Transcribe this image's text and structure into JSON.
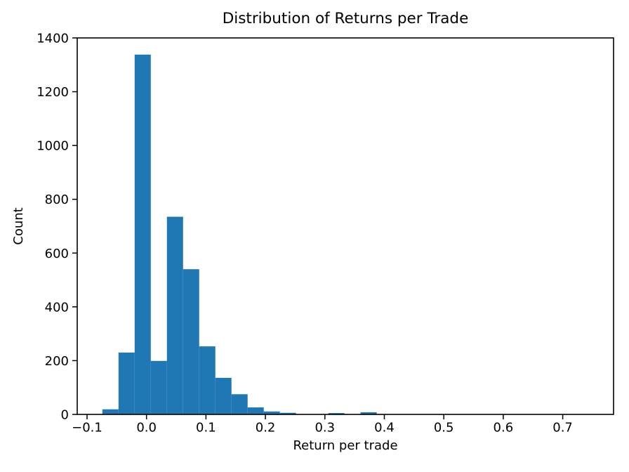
{
  "chart_data": {
    "type": "bar",
    "subtype": "histogram",
    "title": "Distribution of Returns per Trade",
    "xlabel": "Return per trade",
    "ylabel": "Count",
    "bar_color": "#1f77b4",
    "axis_color": "#000000",
    "background_color": "#ffffff",
    "grid": false,
    "legend": false,
    "xlim": [
      -0.1165,
      0.7855
    ],
    "ylim": [
      0,
      1400
    ],
    "xticks": [
      -0.1,
      0.0,
      0.1,
      0.2,
      0.3,
      0.4,
      0.5,
      0.6,
      0.7
    ],
    "xtick_labels": [
      "−0.1",
      "0.0",
      "0.1",
      "0.2",
      "0.3",
      "0.4",
      "0.5",
      "0.6",
      "0.7"
    ],
    "yticks": [
      0,
      200,
      400,
      600,
      800,
      1000,
      1200,
      1400
    ],
    "ytick_labels": [
      "0",
      "200",
      "400",
      "600",
      "800",
      "1000",
      "1200",
      "1400"
    ],
    "bins": {
      "start": -0.0742,
      "width": 0.02714,
      "num": 30
    },
    "counts": [
      19,
      230,
      1338,
      199,
      735,
      540,
      253,
      136,
      75,
      26,
      11,
      6,
      0,
      0,
      5,
      0,
      8,
      0,
      0,
      0,
      0,
      0,
      0,
      0,
      0,
      0,
      0,
      0,
      0,
      1
    ]
  }
}
